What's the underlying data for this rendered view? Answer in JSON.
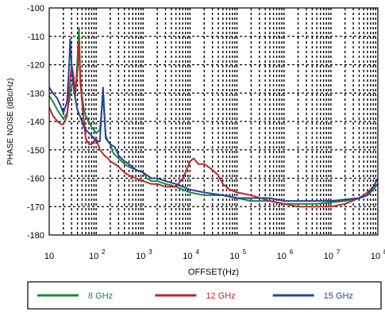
{
  "chart_data": {
    "type": "line",
    "title": "",
    "xlabel": "OFFSET(Hz)",
    "ylabel": "PHASE NOISE (dBc/Hz)",
    "x_scale": "log",
    "xlim": [
      10,
      100000000
    ],
    "ylim": [
      -180,
      -100
    ],
    "grid": true,
    "legend_position": "bottom",
    "x_ticks": [
      {
        "value": 10,
        "base": "10",
        "exp": ""
      },
      {
        "value": 100,
        "base": "10",
        "exp": "2"
      },
      {
        "value": 1000,
        "base": "10",
        "exp": "3"
      },
      {
        "value": 10000,
        "base": "10",
        "exp": "4"
      },
      {
        "value": 100000,
        "base": "10",
        "exp": "5"
      },
      {
        "value": 1000000,
        "base": "10",
        "exp": "6"
      },
      {
        "value": 10000000,
        "base": "10",
        "exp": "7"
      },
      {
        "value": 100000000,
        "base": "10",
        "exp": "8"
      }
    ],
    "y_ticks": [
      -100,
      -110,
      -120,
      -130,
      -140,
      -150,
      -160,
      -170,
      -180
    ],
    "series": [
      {
        "name": "8 GHz",
        "color": "#1a8a3c",
        "x": [
          10,
          12,
          15,
          18,
          20,
          24,
          27,
          30,
          33,
          36,
          40,
          43,
          46,
          50,
          55,
          60,
          70,
          80,
          100,
          120,
          140,
          160,
          180,
          200,
          230,
          260,
          300,
          400,
          500,
          700,
          1000,
          1200,
          1500,
          2000,
          3000,
          5000,
          7000,
          10000,
          20000,
          50000,
          100000,
          200000,
          500000,
          1000000,
          2000000,
          5000000,
          10000000,
          20000000,
          40000000,
          60000000,
          80000000,
          100000000
        ],
        "y": [
          -131,
          -133,
          -136,
          -138,
          -139,
          -137,
          -132,
          -127,
          -126,
          -131,
          -118,
          -107,
          -125,
          -131,
          -136,
          -138,
          -140,
          -142,
          -144,
          -143,
          -131,
          -145,
          -147,
          -148,
          -151,
          -152,
          -153,
          -155,
          -156,
          -157,
          -158,
          -160,
          -161,
          -161,
          -162,
          -163,
          -164,
          -165,
          -166,
          -166,
          -167,
          -168,
          -168,
          -169,
          -169,
          -169,
          -168.5,
          -168,
          -167,
          -166,
          -164,
          -162
        ]
      },
      {
        "name": "12 GHz",
        "color": "#c0262d",
        "x": [
          10,
          12,
          15,
          18,
          20,
          24,
          27,
          30,
          33,
          36,
          40,
          43,
          46,
          50,
          55,
          60,
          70,
          80,
          100,
          120,
          150,
          180,
          200,
          250,
          300,
          400,
          500,
          700,
          1000,
          1500,
          2000,
          3000,
          5000,
          7000,
          9000,
          10000,
          12000,
          15000,
          20000,
          30000,
          40000,
          50000,
          70000,
          100000,
          200000,
          500000,
          1000000,
          2000000,
          5000000,
          10000000,
          20000000,
          40000000,
          60000000,
          80000000,
          100000000
        ],
        "y": [
          -135,
          -138,
          -140,
          -141,
          -141,
          -138,
          -128,
          -120,
          -124,
          -130,
          -122,
          -112,
          -126,
          -133,
          -140,
          -146,
          -148,
          -148,
          -146,
          -150,
          -152,
          -153,
          -154,
          -155,
          -156,
          -158,
          -159,
          -160,
          -161,
          -162,
          -162,
          -163,
          -163,
          -160,
          -156,
          -154,
          -153,
          -155,
          -155,
          -157,
          -159,
          -162,
          -164,
          -165,
          -166,
          -168,
          -169,
          -170,
          -170,
          -170,
          -169,
          -167,
          -165,
          -163,
          -162
        ]
      },
      {
        "name": "15 GHz",
        "color": "#27439b",
        "x": [
          10,
          12,
          15,
          18,
          20,
          24,
          27,
          28,
          30,
          33,
          36,
          40,
          45,
          50,
          55,
          60,
          70,
          80,
          90,
          100,
          120,
          140,
          160,
          180,
          200,
          250,
          300,
          400,
          500,
          700,
          1000,
          1500,
          2000,
          3000,
          5000,
          7000,
          10000,
          20000,
          50000,
          100000,
          200000,
          500000,
          1000000,
          2000000,
          5000000,
          10000000,
          20000000,
          40000000,
          60000000,
          80000000,
          100000000
        ],
        "y": [
          -128,
          -130,
          -132,
          -135,
          -137,
          -133,
          -118,
          -111,
          -120,
          -128,
          -132,
          -136,
          -138,
          -140,
          -142,
          -143,
          -144,
          -145,
          -146,
          -147,
          -147,
          -128,
          -146,
          -147,
          -148,
          -149,
          -152,
          -154,
          -155,
          -157,
          -158,
          -160,
          -160,
          -161,
          -162,
          -163,
          -164,
          -165,
          -166,
          -167,
          -167,
          -167,
          -168,
          -168,
          -168,
          -168,
          -167.5,
          -167,
          -166,
          -163,
          -160
        ]
      }
    ]
  }
}
